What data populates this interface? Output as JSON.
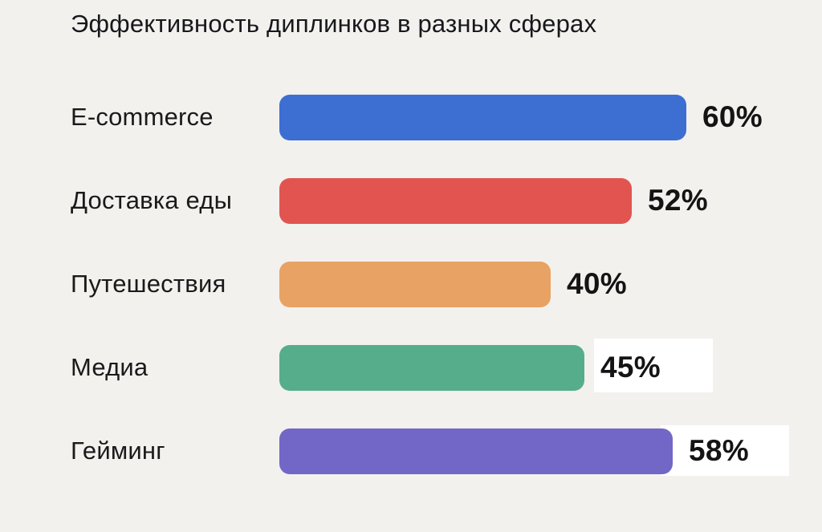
{
  "title": "Эффективность диплинков в разных сферах",
  "chart_data": {
    "type": "bar",
    "orientation": "horizontal",
    "title": "Эффективность диплинков в разных сферах",
    "categories": [
      "E-commerce",
      "Доставка еды",
      "Путешествия",
      "Медиа",
      "Гейминг"
    ],
    "values": [
      60,
      52,
      40,
      45,
      58
    ],
    "value_labels": [
      "60%",
      "52%",
      "40%",
      "45%",
      "58%"
    ],
    "bar_colors": [
      "#3D6FD2",
      "#E25450",
      "#E8A263",
      "#55AD8C",
      "#7267C6"
    ],
    "xlim": [
      0,
      60
    ],
    "grid": false,
    "legend": false,
    "background_color": "#F2F1EE",
    "text_color": "#1a1a1a"
  }
}
